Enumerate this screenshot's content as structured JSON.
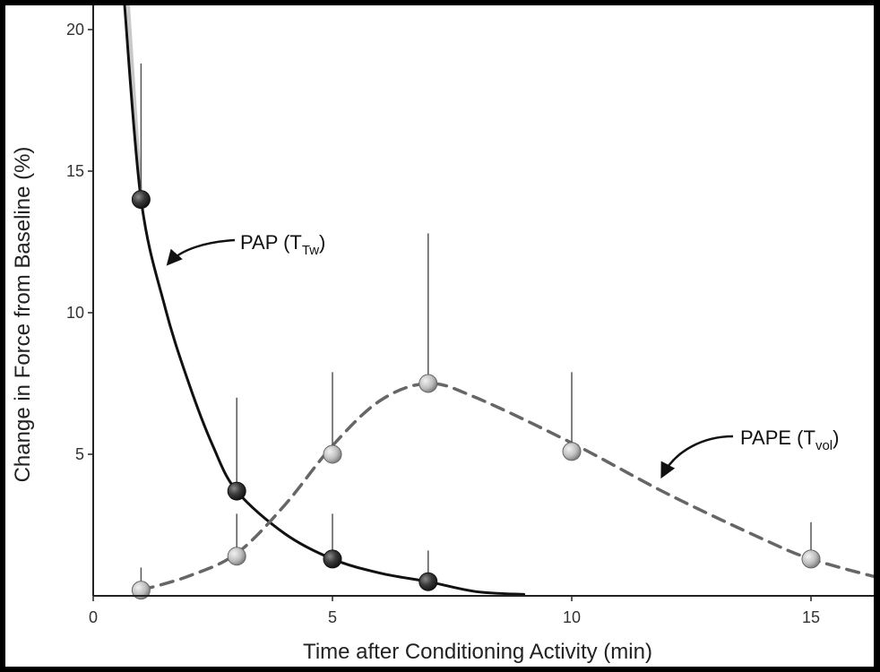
{
  "chart_data": {
    "type": "line",
    "xlabel": "Time after Conditioning Activity (min)",
    "ylabel": "Change in Force from Baseline (%)",
    "xlim": [
      0,
      16.5
    ],
    "ylim": [
      0,
      20.5
    ],
    "x_ticks": [
      "0",
      "5",
      "10",
      "15"
    ],
    "y_ticks": [
      "5",
      "10",
      "15",
      "20"
    ],
    "x_tick_values": [
      0,
      5,
      10,
      15
    ],
    "y_tick_values": [
      5,
      10,
      15,
      20
    ],
    "series": [
      {
        "name": "PAP",
        "style": "solid",
        "color": "#111111",
        "marker_color": "#3a3a3a",
        "x": [
          1,
          3,
          5,
          7
        ],
        "values": [
          14.0,
          3.7,
          1.3,
          0.5
        ],
        "error_top": [
          18.8,
          7.0,
          2.9,
          1.6
        ],
        "curve": [
          [
            0.65,
            21
          ],
          [
            1,
            14
          ],
          [
            1.5,
            10.2
          ],
          [
            2,
            7.5
          ],
          [
            2.5,
            5.3
          ],
          [
            3,
            3.7
          ],
          [
            4,
            2.2
          ],
          [
            5,
            1.3
          ],
          [
            6,
            0.8
          ],
          [
            7,
            0.5
          ],
          [
            8,
            0.15
          ],
          [
            9,
            0.05
          ]
        ]
      },
      {
        "name": "PAPE",
        "style": "dashed",
        "color": "#666666",
        "marker_color": "#bdbdbd",
        "x": [
          1,
          3,
          5,
          7,
          10,
          15
        ],
        "values": [
          0.2,
          1.4,
          5.0,
          7.5,
          5.1,
          1.3
        ],
        "error_top": [
          1.0,
          2.9,
          7.9,
          12.8,
          7.9,
          2.6
        ],
        "curve": [
          [
            1,
            0.2
          ],
          [
            2,
            0.7
          ],
          [
            3,
            1.5
          ],
          [
            4,
            3.2
          ],
          [
            5,
            5.3
          ],
          [
            6,
            6.9
          ],
          [
            7,
            7.5
          ],
          [
            8,
            7.0
          ],
          [
            10,
            5.4
          ],
          [
            12,
            3.6
          ],
          [
            14,
            2.0
          ],
          [
            15,
            1.3
          ],
          [
            16.5,
            0.6
          ]
        ]
      }
    ],
    "annotations": [
      {
        "label": "PAP (T",
        "sub": "Tw",
        "close": ")",
        "x": 6.1,
        "y": 12.3
      },
      {
        "label": "PAPE (T",
        "sub": "vol",
        "close": ")",
        "x": 13.9,
        "y": 5.5
      }
    ]
  }
}
